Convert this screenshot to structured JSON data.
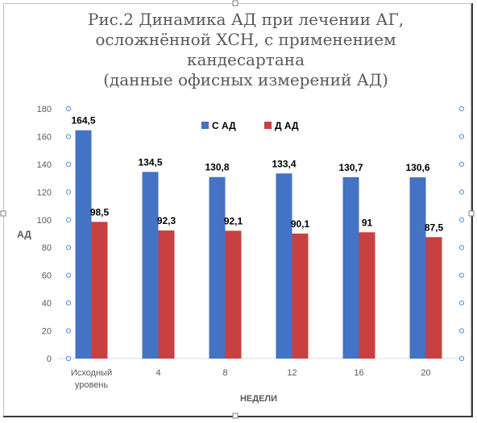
{
  "chart_data": {
    "type": "bar",
    "title_lines": [
      "Рис.2 Динамика АД при лечении АГ,",
      "осложнённой ХСН, с применением кандесартана",
      "(данные офисных измерений АД)"
    ],
    "xlabel": "НЕДЕЛИ",
    "ylabel": "АД",
    "ylim": [
      0,
      180
    ],
    "yticks": [
      0,
      20,
      40,
      60,
      80,
      100,
      120,
      140,
      160,
      180
    ],
    "categories": [
      [
        "Исходный",
        "уровень"
      ],
      [
        "4"
      ],
      [
        "8"
      ],
      [
        "12"
      ],
      [
        "16"
      ],
      [
        "20"
      ]
    ],
    "series": [
      {
        "name": "С АД",
        "color": "#4472c4",
        "values": [
          164.5,
          134.5,
          130.8,
          133.4,
          130.7,
          130.6
        ],
        "labels": [
          "164,5",
          "134,5",
          "130,8",
          "133,4",
          "130,7",
          "130,6"
        ]
      },
      {
        "name": "Д АД",
        "color": "#c94040",
        "values": [
          98.5,
          92.3,
          92.1,
          90.1,
          91,
          87.5
        ],
        "labels": [
          "98,5",
          "92,3",
          "92,1",
          "90,1",
          "91",
          "87,5"
        ]
      }
    ],
    "legend_position": "top-center",
    "grid": false
  }
}
